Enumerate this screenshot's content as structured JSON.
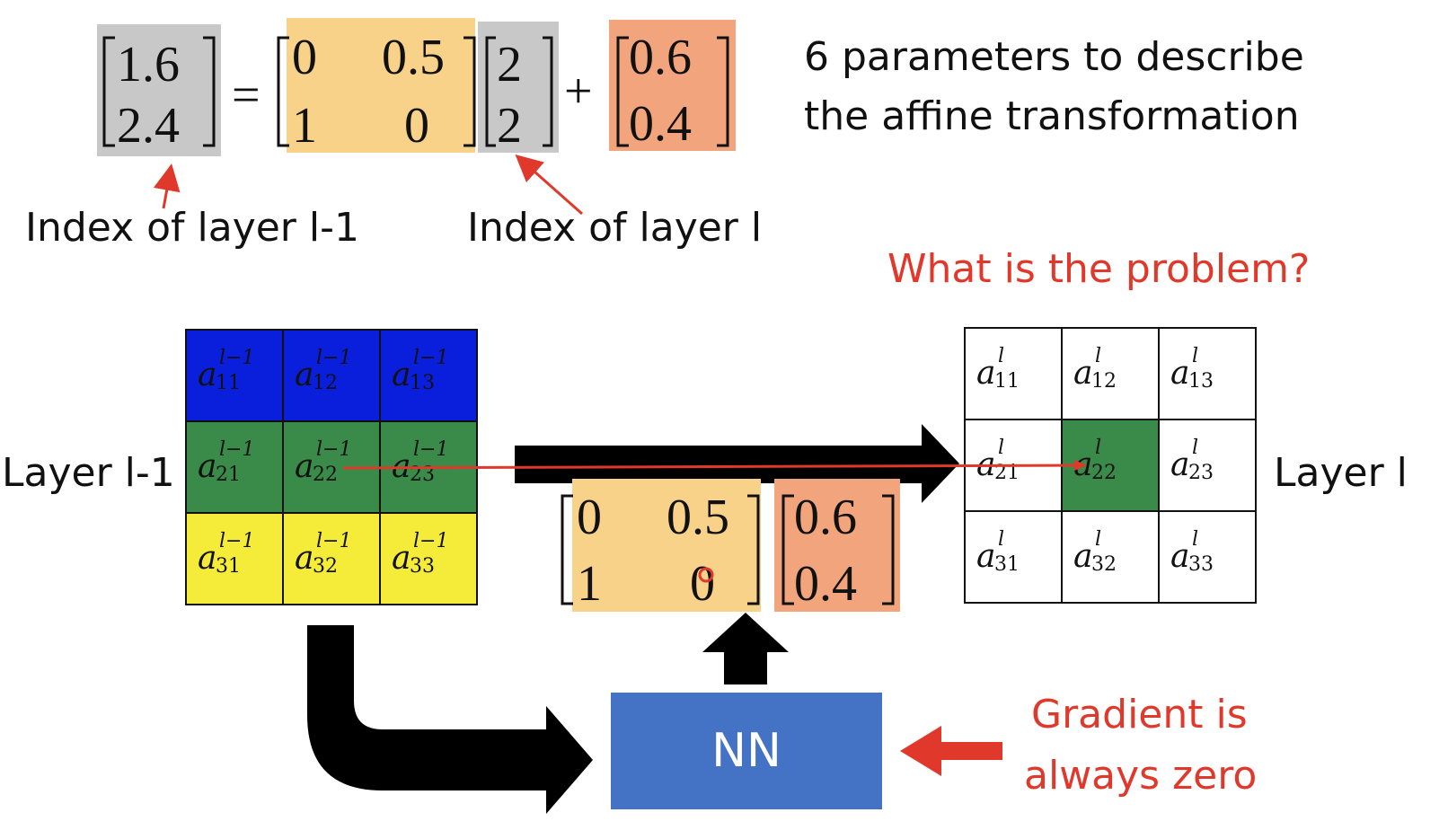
{
  "equation": {
    "lhs": [
      "1.6",
      "2.4"
    ],
    "equals": "=",
    "A": [
      [
        "0",
        "0.5"
      ],
      [
        "1",
        "0"
      ]
    ],
    "x": [
      "2",
      "2"
    ],
    "plus": "+",
    "b": [
      "0.6",
      "0.4"
    ]
  },
  "description": {
    "line1": "6 parameters to describe",
    "line2": "the affine transformation"
  },
  "labels": {
    "index_prev": "Index of layer l-1",
    "index_curr": "Index of layer l",
    "question": "What is the problem?",
    "layer_prev": "Layer l-1",
    "layer_curr": "Layer l",
    "nn": "NN",
    "gradient_line1": "Gradient is",
    "gradient_line2": "always zero"
  },
  "layer_prev_grid": {
    "base": "a",
    "superscript": "l−1",
    "subscripts": [
      [
        "11",
        "12",
        "13"
      ],
      [
        "21",
        "22",
        "23"
      ],
      [
        "31",
        "32",
        "33"
      ]
    ],
    "row_colors": [
      "#0a1fdc",
      "#3a8a4a",
      "#f5ec3a"
    ]
  },
  "layer_curr_grid": {
    "base": "a",
    "superscript": "l",
    "subscripts": [
      [
        "11",
        "12",
        "13"
      ],
      [
        "21",
        "22",
        "23"
      ],
      [
        "31",
        "32",
        "33"
      ]
    ],
    "highlight_color": "#3a8a4a"
  },
  "lower_matrix": {
    "A": [
      [
        "0",
        "0.5"
      ],
      [
        "1",
        "0"
      ]
    ],
    "b": [
      "0.6",
      "0.4"
    ]
  },
  "colors": {
    "matrix_A_fill": "#f9d28a",
    "matrix_b_fill": "#f2a57c",
    "vector_gray": "#c8c8c8",
    "nn_box": "#4472c4",
    "accent_red": "#e0392b"
  }
}
